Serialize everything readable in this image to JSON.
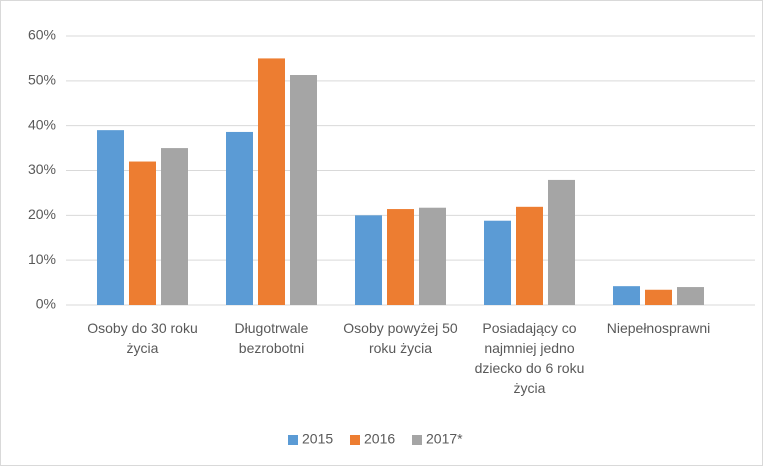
{
  "chart_data": {
    "type": "bar",
    "categories": [
      "Osoby do 30 roku życia",
      "Długotrwale bezrobotni",
      "Osoby powyżej 50 roku życia",
      "Posiadający co najmniej jedno dziecko do 6 roku życia",
      "Niepełnosprawni"
    ],
    "series": [
      {
        "name": "2015",
        "color": "#5b9bd5",
        "values": [
          39,
          38.6,
          20,
          18.8,
          4.2
        ]
      },
      {
        "name": "2016",
        "color": "#ed7d31",
        "values": [
          32,
          55,
          21.4,
          21.9,
          3.4
        ]
      },
      {
        "name": "2017*",
        "color": "#a5a5a5",
        "values": [
          35,
          51.3,
          21.7,
          27.9,
          4
        ]
      }
    ],
    "ylim": [
      0,
      60
    ],
    "yticks": [
      {
        "value": 0,
        "label": "0%"
      },
      {
        "value": 10,
        "label": "10%"
      },
      {
        "value": 20,
        "label": "20%"
      },
      {
        "value": 30,
        "label": "30%"
      },
      {
        "value": 40,
        "label": "40%"
      },
      {
        "value": 50,
        "label": "50%"
      },
      {
        "value": 60,
        "label": "60%"
      }
    ],
    "grid": true,
    "legend": "bottom"
  }
}
